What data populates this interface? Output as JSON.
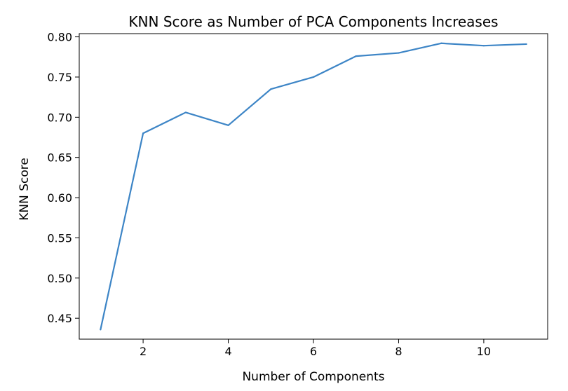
{
  "chart_data": {
    "type": "line",
    "title": "KNN Score as Number of PCA Components Increases",
    "xlabel": "Number of Components",
    "ylabel": "KNN Score",
    "x": [
      1,
      2,
      3,
      4,
      5,
      6,
      7,
      8,
      9,
      10,
      11
    ],
    "series": [
      {
        "values": [
          0.436,
          0.68,
          0.706,
          0.69,
          0.735,
          0.75,
          0.776,
          0.78,
          0.792,
          0.789,
          0.791
        ],
        "color": "#3d85c6"
      }
    ],
    "xlim": [
      0.5,
      11.5
    ],
    "ylim": [
      0.424,
      0.804
    ],
    "xticks": [
      2,
      4,
      6,
      8,
      10
    ],
    "xtick_labels": [
      "2",
      "4",
      "6",
      "8",
      "10"
    ],
    "yticks": [
      0.45,
      0.5,
      0.55,
      0.6,
      0.65,
      0.7,
      0.75,
      0.8
    ],
    "ytick_labels": [
      "0.45",
      "0.50",
      "0.55",
      "0.60",
      "0.65",
      "0.70",
      "0.75",
      "0.80"
    ],
    "grid": false,
    "legend": false
  }
}
